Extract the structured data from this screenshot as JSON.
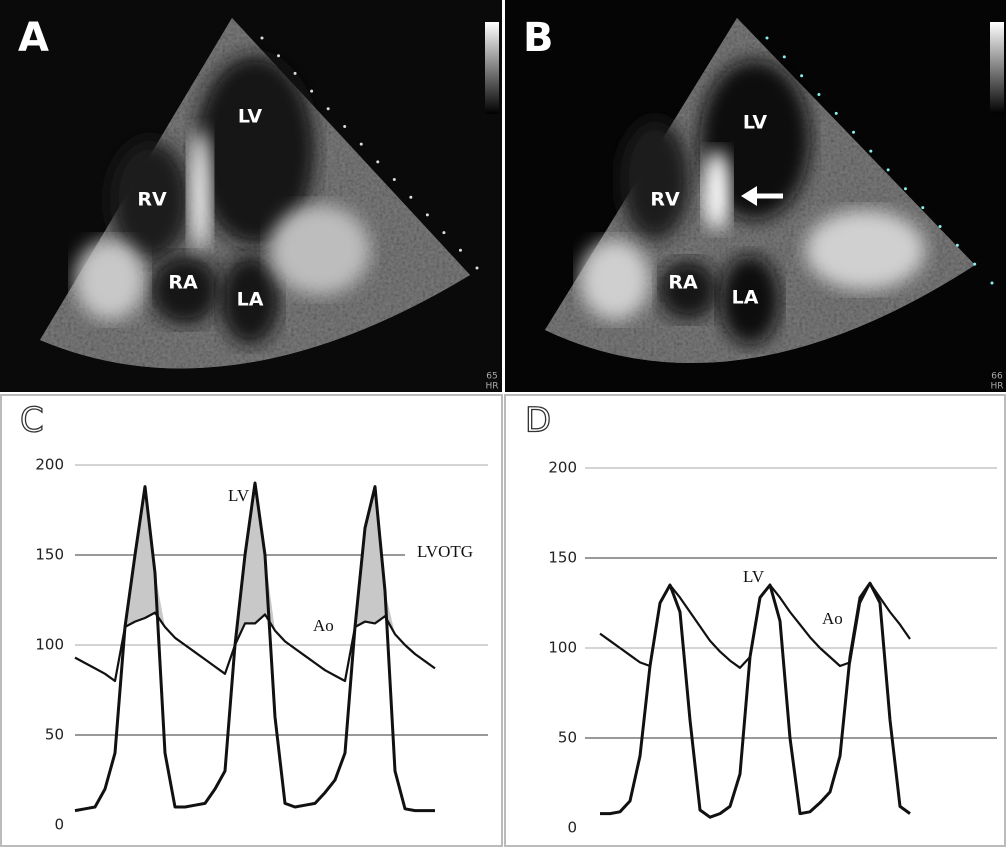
{
  "panels": [
    {
      "label": "A",
      "chambers": [
        "LV",
        "RV",
        "RA",
        "LA"
      ],
      "hr": "65",
      "hr_unit": "HR",
      "arrow": false
    },
    {
      "label": "B",
      "chambers": [
        "LV",
        "RV",
        "RA",
        "LA"
      ],
      "hr": "66",
      "hr_unit": "HR",
      "arrow": true
    }
  ],
  "chart_data": [
    {
      "type": "line",
      "label": "C",
      "ylim": [
        0,
        200
      ],
      "yticks": [
        0,
        50,
        100,
        150,
        200
      ],
      "grid": true,
      "annotation": "LVOTG",
      "fill_between_color": "#c8c8c8",
      "series": [
        {
          "name": "LV",
          "color": "#111111",
          "values": [
            8,
            9,
            10,
            20,
            40,
            110,
            150,
            188,
            140,
            40,
            10,
            10,
            11,
            12,
            20,
            30,
            100,
            150,
            190,
            150,
            60,
            12,
            10,
            11,
            12,
            18,
            25,
            40,
            110,
            165,
            188,
            130,
            30,
            9,
            8,
            8,
            8
          ]
        },
        {
          "name": "Ao",
          "color": "#111111",
          "values": [
            93,
            90,
            87,
            84,
            80,
            110,
            113,
            115,
            118,
            110,
            104,
            100,
            96,
            92,
            88,
            84,
            100,
            112,
            112,
            117,
            108,
            102,
            98,
            94,
            90,
            86,
            83,
            80,
            110,
            113,
            112,
            116,
            106,
            100,
            95,
            91,
            87
          ]
        }
      ]
    },
    {
      "type": "line",
      "label": "D",
      "ylim": [
        0,
        200
      ],
      "yticks": [
        0,
        50,
        100,
        150,
        200
      ],
      "grid": true,
      "series": [
        {
          "name": "LV",
          "color": "#111111",
          "values": [
            8,
            8,
            9,
            15,
            40,
            90,
            125,
            135,
            120,
            60,
            10,
            6,
            8,
            12,
            30,
            95,
            128,
            135,
            115,
            50,
            8,
            9,
            14,
            20,
            40,
            95,
            128,
            136,
            125,
            60,
            12,
            8
          ]
        },
        {
          "name": "Ao",
          "color": "#111111",
          "values": [
            108,
            104,
            100,
            96,
            92,
            90,
            125,
            135,
            128,
            120,
            112,
            104,
            98,
            93,
            89,
            95,
            128,
            135,
            128,
            120,
            113,
            106,
            100,
            95,
            90,
            92,
            125,
            136,
            128,
            120,
            113,
            105
          ]
        }
      ]
    }
  ]
}
